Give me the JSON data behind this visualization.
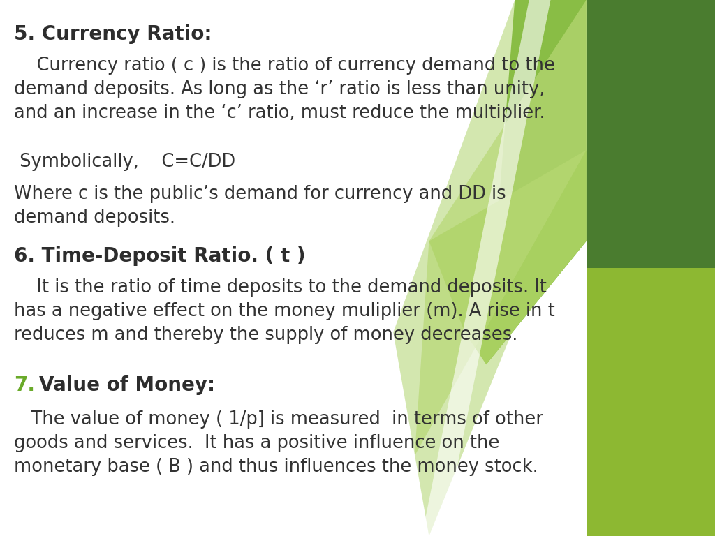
{
  "background_color": "#ffffff",
  "text_color": "#333333",
  "heading_color": "#2d2d2d",
  "green_dark": "#4a7c2f",
  "green_medium": "#6aaa2a",
  "green_light": "#a8d060",
  "green_pale": "#c8e08a",
  "heading1": "5. Currency Ratio:",
  "para1": "    Currency ratio ( c ) is the ratio of currency demand to the\ndemand deposits. As long as the ‘r’ ratio is less than unity,\nand an increase in the ‘c’ ratio, must reduce the multiplier.",
  "para2": " Symbolically,    C=C/DD",
  "para3": "Where c is the public’s demand for currency and DD is\ndemand deposits.",
  "heading2": "6. Time-Deposit Ratio. ( t )",
  "para4": "    It is the ratio of time deposits to the demand deposits. It\nhas a negative effect on the money muliplier (m). A rise in t\nreduces m and thereby the supply of money decreases.",
  "heading3_num": "7.",
  "heading3_text": "   Value of Money:",
  "para5": "   The value of money ( 1/p] is measured  in terms of other\ngoods and services.  It has a positive influence on the\nmonetary base ( B ) and thus influences the money stock."
}
